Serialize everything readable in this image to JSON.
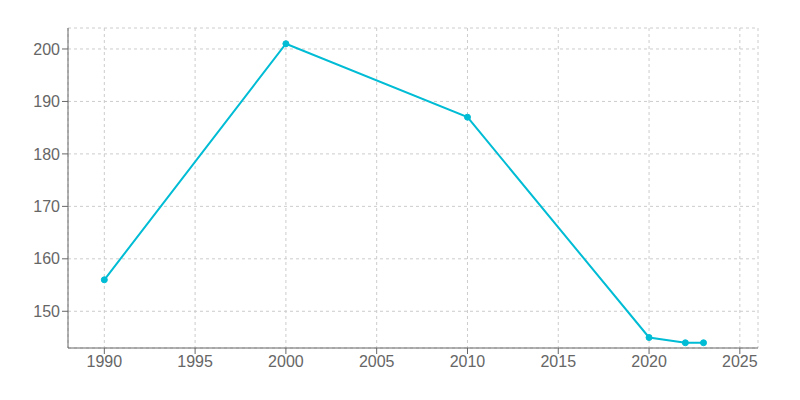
{
  "chart_data": {
    "type": "line",
    "x": [
      1990,
      2000,
      2010,
      2020,
      2022,
      2023
    ],
    "values": [
      156,
      201,
      187,
      145,
      144,
      144
    ],
    "color": "#00bcd4",
    "marker": "circle",
    "xlim": [
      1988,
      2026
    ],
    "ylim": [
      143,
      204
    ],
    "xticks": [
      1990,
      1995,
      2000,
      2005,
      2010,
      2015,
      2020,
      2025
    ],
    "yticks": [
      150,
      160,
      170,
      180,
      190,
      200
    ],
    "grid": true
  }
}
